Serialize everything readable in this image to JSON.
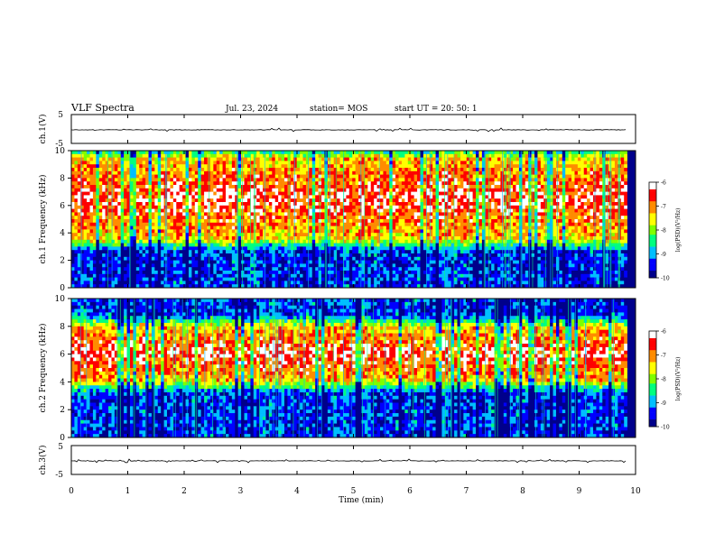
{
  "header": {
    "title": "VLF Spectra",
    "date": "Jul. 23, 2024",
    "station": "station= MOS",
    "start": "start UT = 20: 50: 1"
  },
  "chart_data": [
    {
      "type": "line",
      "panel": "ch1-waveform",
      "ylabel": "ch.1(V)",
      "ylim": [
        -5,
        5
      ],
      "yticks": [
        "5",
        "-5"
      ],
      "series": [
        {
          "values": [
            -0.3,
            -0.3,
            -0.3,
            -0.3,
            -0.3
          ]
        }
      ]
    },
    {
      "type": "heatmap",
      "panel": "ch1-spectrogram",
      "ylabel": "ch.1 Frequency (kHz)",
      "ylim": [
        0,
        10
      ],
      "yticks": [
        "0",
        "2",
        "4",
        "6",
        "8",
        "10"
      ],
      "intensity_band_khz": [
        3.5,
        9.5
      ],
      "colorbar": {
        "label": "log(PSD)(V²/Hz)",
        "ticks": [
          "-6",
          "-7",
          "-8",
          "-9",
          "-10"
        ],
        "range": [
          -10,
          -6
        ]
      }
    },
    {
      "type": "heatmap",
      "panel": "ch2-spectrogram",
      "ylabel": "ch.2 Frequency (kHz)",
      "ylim": [
        0,
        10
      ],
      "yticks": [
        "0",
        "2",
        "4",
        "6",
        "8",
        "10"
      ],
      "intensity_band_khz": [
        4,
        8
      ],
      "colorbar": {
        "label": "log(PSD)(V²/Hz)",
        "ticks": [
          "-6",
          "-7",
          "-8",
          "-9",
          "-10"
        ],
        "range": [
          -10,
          -6
        ]
      }
    },
    {
      "type": "line",
      "panel": "ch3-waveform",
      "ylabel": "ch.3(V)",
      "ylim": [
        -5,
        5
      ],
      "yticks": [
        "5",
        "-5"
      ],
      "series": [
        {
          "values": [
            -0.3,
            -0.3,
            -0.3,
            -0.3,
            -0.3
          ]
        }
      ]
    }
  ],
  "x_axis": {
    "label": "Time (min)",
    "range": [
      0,
      10
    ],
    "ticks": [
      "0",
      "1",
      "2",
      "3",
      "4",
      "5",
      "6",
      "7",
      "8",
      "9",
      "10"
    ],
    "data_end_min": 9.85
  },
  "colors": {
    "scale": [
      "#00008b",
      "#0000ff",
      "#00bfff",
      "#00ff7f",
      "#7fff00",
      "#ffff00",
      "#ff8c00",
      "#ff0000",
      "#ffffff"
    ]
  }
}
